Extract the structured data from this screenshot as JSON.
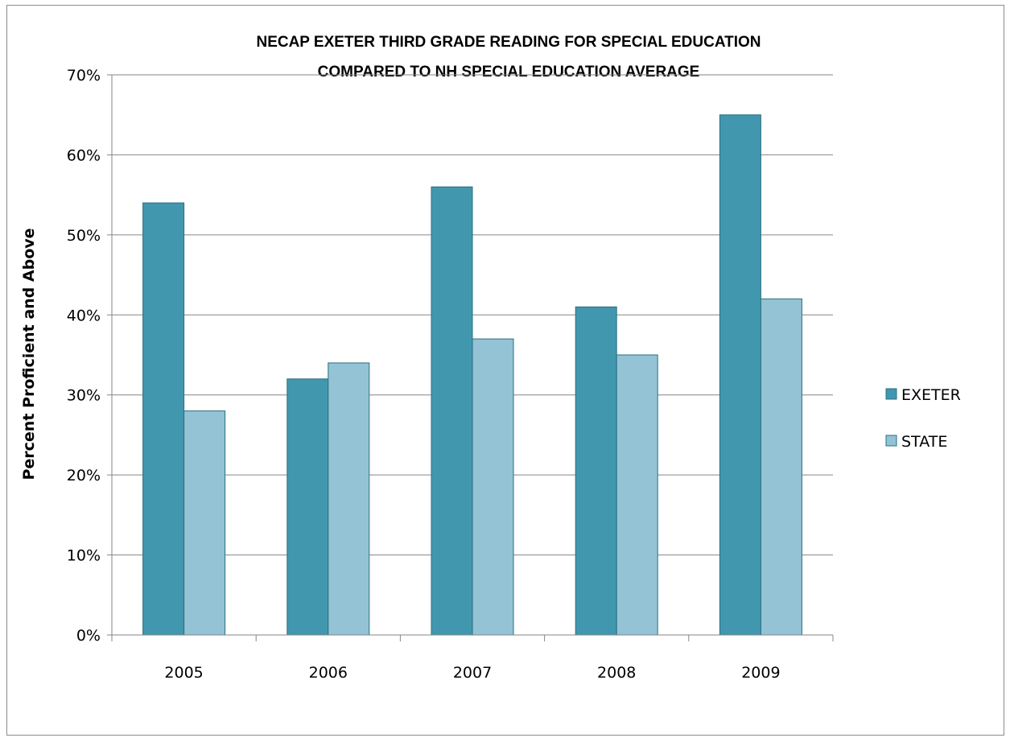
{
  "chart_data": {
    "type": "bar",
    "title_lines": [
      "NECAP EXETER THIRD GRADE READING FOR SPECIAL EDUCATION",
      "COMPARED TO NH SPECIAL EDUCATION AVERAGE"
    ],
    "xlabel": "",
    "ylabel": "Percent Proficient and Above",
    "categories": [
      "2005",
      "2006",
      "2007",
      "2008",
      "2009"
    ],
    "series": [
      {
        "name": "EXETER",
        "color": "#4197ae",
        "values": [
          54,
          32,
          56,
          41,
          65
        ]
      },
      {
        "name": "STATE",
        "color": "#93c3d5",
        "values": [
          28,
          34,
          37,
          35,
          42
        ]
      }
    ],
    "ylim": [
      0,
      70
    ],
    "y_ticks": [
      "0%",
      "10%",
      "20%",
      "30%",
      "40%",
      "50%",
      "60%",
      "70%"
    ],
    "grid": true,
    "legend_position": "right",
    "bar_edge_color": "#2a6f82"
  }
}
